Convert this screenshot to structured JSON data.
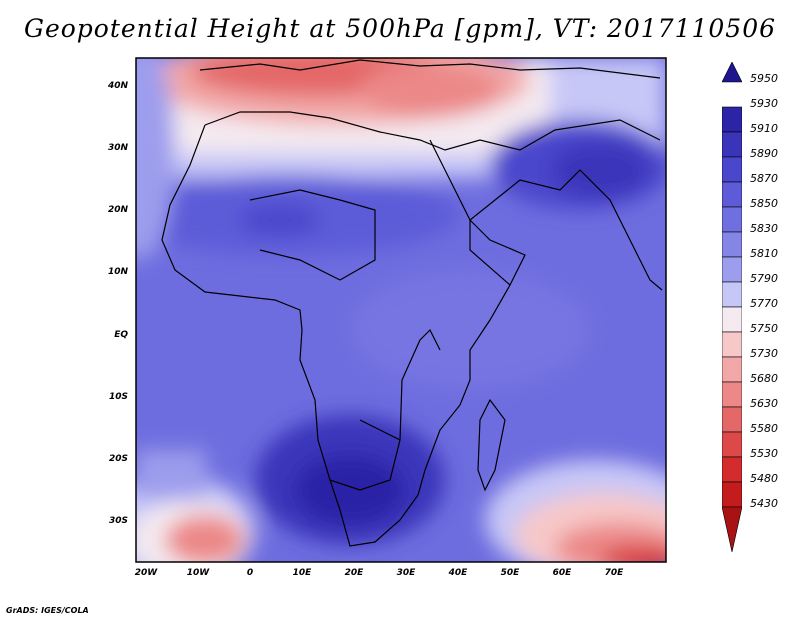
{
  "title": "Geopotential Height at 500hPa [gpm], VT: 2017110506",
  "credit": "GrADS: IGES/COLA",
  "axes": {
    "lat_labels": [
      "40N",
      "30N",
      "20N",
      "10N",
      "EQ",
      "10S",
      "20S",
      "30S"
    ],
    "lon_labels": [
      "20W",
      "10W",
      "0",
      "10E",
      "20E",
      "30E",
      "40E",
      "50E",
      "60E",
      "70E"
    ]
  },
  "colorbar": {
    "levels": [
      5950,
      5930,
      5910,
      5890,
      5870,
      5850,
      5830,
      5810,
      5790,
      5770,
      5750,
      5730,
      5680,
      5630,
      5580,
      5530,
      5480,
      5430
    ],
    "labels": [
      "5950",
      "5930",
      "5910",
      "5890",
      "5870",
      "5850",
      "5830",
      "5810",
      "5790",
      "5770",
      "5750",
      "5730",
      "5680",
      "5630",
      "5580",
      "5530",
      "5480",
      "5430"
    ],
    "colors": [
      "#1d168f",
      "#2b24a6",
      "#3a34ba",
      "#4b47cc",
      "#5d5bd8",
      "#706fe0",
      "#8585e6",
      "#9d9ded",
      "#c7c7f7",
      "#f4eaf0",
      "#f7c8c8",
      "#f2a8a8",
      "#ec8888",
      "#e46868",
      "#dd4848",
      "#d42c2c",
      "#c41c1c",
      "#a81212"
    ]
  }
}
